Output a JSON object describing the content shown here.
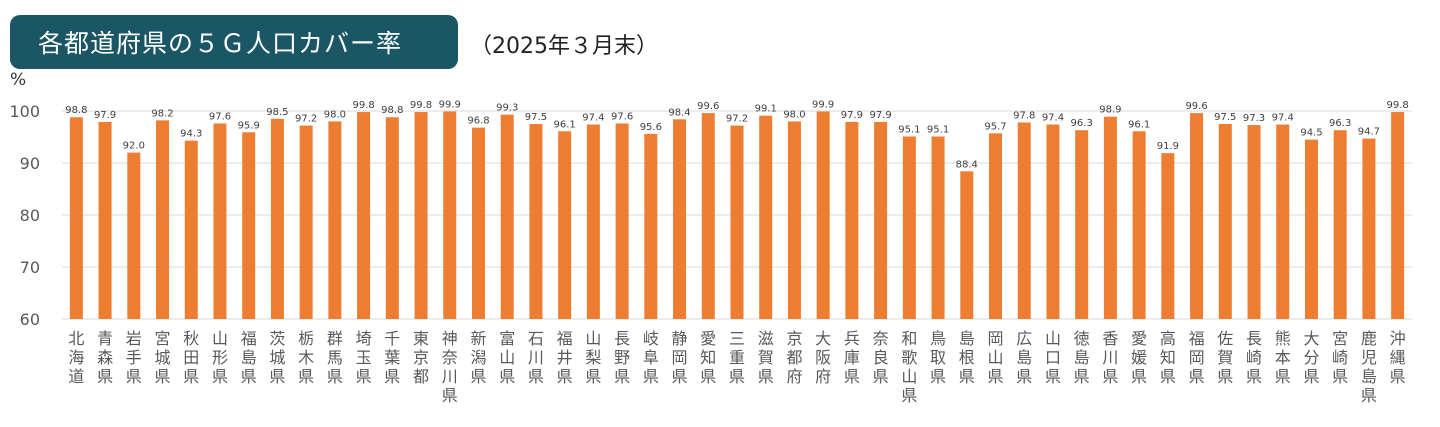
{
  "header": {
    "title": "各都道府県の５Ｇ人口カバー率",
    "subtitle": "（2025年３月末）"
  },
  "colors": {
    "bar": "#ed7d31",
    "title_bg": "#1a5664",
    "grid": "#d9d9d9",
    "axis_text": "#595959"
  },
  "chart_data": {
    "type": "bar",
    "ylabel": "%",
    "ylim": [
      60,
      100
    ],
    "yticks": [
      60,
      70,
      80,
      90,
      100
    ],
    "grid": true,
    "categories": [
      "北海道",
      "青森県",
      "岩手県",
      "宮城県",
      "秋田県",
      "山形県",
      "福島県",
      "茨城県",
      "栃木県",
      "群馬県",
      "埼玉県",
      "千葉県",
      "東京都",
      "神奈川県",
      "新潟県",
      "富山県",
      "石川県",
      "福井県",
      "山梨県",
      "長野県",
      "岐阜県",
      "静岡県",
      "愛知県",
      "三重県",
      "滋賀県",
      "京都府",
      "大阪府",
      "兵庫県",
      "奈良県",
      "和歌山県",
      "鳥取県",
      "島根県",
      "岡山県",
      "広島県",
      "山口県",
      "徳島県",
      "香川県",
      "愛媛県",
      "高知県",
      "福岡県",
      "佐賀県",
      "長崎県",
      "熊本県",
      "大分県",
      "宮崎県",
      "鹿児島県",
      "沖縄県"
    ],
    "values": [
      98.8,
      97.9,
      92.0,
      98.2,
      94.3,
      97.6,
      95.9,
      98.5,
      97.2,
      98.0,
      99.8,
      98.8,
      99.8,
      99.9,
      96.8,
      99.3,
      97.5,
      96.1,
      97.4,
      97.6,
      95.6,
      98.4,
      99.6,
      97.2,
      99.1,
      98.0,
      99.9,
      97.9,
      97.9,
      95.1,
      95.1,
      88.4,
      95.7,
      97.8,
      97.4,
      96.3,
      98.9,
      96.1,
      91.9,
      99.6,
      97.5,
      97.3,
      97.4,
      94.5,
      96.3,
      94.7,
      99.8
    ]
  }
}
